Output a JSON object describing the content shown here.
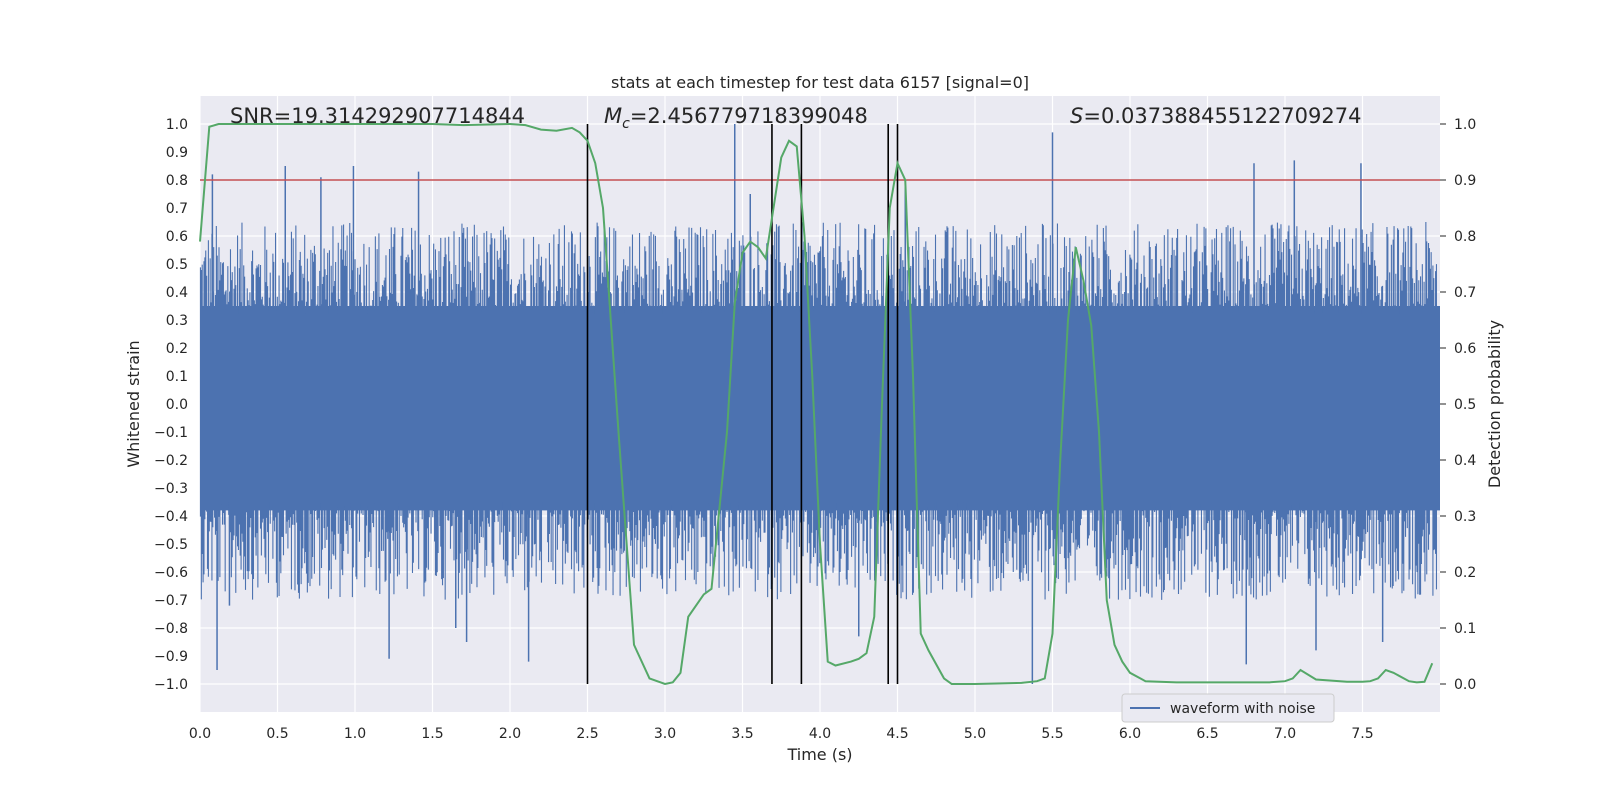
{
  "colors": {
    "background": "#eaeaf2",
    "grid": "#ffffff",
    "waveform": "#4c72b0",
    "probability": "#55a868",
    "threshold": "#c44e52",
    "event_line": "#000000"
  },
  "chart_data": {
    "type": "line",
    "title": "stats at each timestep for test data 6157 [signal=0]",
    "xlabel": "Time (s)",
    "ylabel_left": "Whitened strain",
    "ylabel_right": "Detection probability",
    "xlim": [
      0.0,
      8.0
    ],
    "ylim_left": [
      -1.1,
      1.1
    ],
    "ylim_right": [
      -0.05,
      1.05
    ],
    "x_ticks": [
      "0.0",
      "0.5",
      "1.0",
      "1.5",
      "2.0",
      "2.5",
      "3.0",
      "3.5",
      "4.0",
      "4.5",
      "5.0",
      "5.5",
      "6.0",
      "6.5",
      "7.0",
      "7.5"
    ],
    "y_ticks_left": [
      "1.0",
      "0.9",
      "0.8",
      "0.7",
      "0.6",
      "0.5",
      "0.4",
      "0.3",
      "0.2",
      "0.1",
      "0.0",
      "−0.1",
      "−0.2",
      "−0.3",
      "−0.4",
      "−0.5",
      "−0.6",
      "−0.7",
      "−0.8",
      "−0.9",
      "−1.0"
    ],
    "y_ticks_right": [
      "1.0",
      "0.9",
      "0.8",
      "0.7",
      "0.6",
      "0.5",
      "0.4",
      "0.3",
      "0.2",
      "0.1",
      "0.0"
    ],
    "annotations": {
      "snr": "SNR=19.314292907714844",
      "mc_prefix": "M",
      "mc_sub": "c",
      "mc_value": "=2.456779718399048",
      "s_prefix": "S",
      "s_value": "=0.037388455122709274"
    },
    "legend": {
      "label": "waveform with noise",
      "location": "lower-right"
    },
    "threshold_right": 0.9,
    "vertical_lines_time": [
      2.5,
      3.69,
      3.88,
      4.44,
      4.5
    ],
    "waveform_envelope": {
      "name": "waveform with noise",
      "typical_upper": 0.45,
      "typical_lower": -0.48,
      "spikes": [
        {
          "x": 0.08,
          "y": 0.82
        },
        {
          "x": 0.11,
          "y": -0.95
        },
        {
          "x": 0.19,
          "y": -0.72
        },
        {
          "x": 0.55,
          "y": 0.85
        },
        {
          "x": 0.78,
          "y": 0.81
        },
        {
          "x": 0.99,
          "y": 0.85
        },
        {
          "x": 1.22,
          "y": -0.91
        },
        {
          "x": 1.41,
          "y": 0.83
        },
        {
          "x": 1.65,
          "y": -0.8
        },
        {
          "x": 1.72,
          "y": -0.85
        },
        {
          "x": 2.12,
          "y": -0.92
        },
        {
          "x": 3.45,
          "y": 1.0
        },
        {
          "x": 3.55,
          "y": 0.75
        },
        {
          "x": 4.25,
          "y": -0.83
        },
        {
          "x": 4.55,
          "y": 0.78
        },
        {
          "x": 5.37,
          "y": -1.0
        },
        {
          "x": 5.5,
          "y": 0.97
        },
        {
          "x": 6.75,
          "y": -0.93
        },
        {
          "x": 7.06,
          "y": 0.87
        },
        {
          "x": 7.2,
          "y": -0.88
        },
        {
          "x": 7.49,
          "y": 0.86
        },
        {
          "x": 7.63,
          "y": -0.85
        },
        {
          "x": 6.8,
          "y": 0.86
        }
      ]
    },
    "probability_series": {
      "name": "detection probability",
      "x": [
        0.0,
        0.06,
        0.12,
        0.3,
        0.6,
        1.0,
        1.5,
        1.7,
        2.0,
        2.1,
        2.2,
        2.3,
        2.4,
        2.45,
        2.5,
        2.55,
        2.6,
        2.65,
        2.7,
        2.8,
        2.9,
        3.0,
        3.05,
        3.1,
        3.15,
        3.25,
        3.3,
        3.4,
        3.45,
        3.5,
        3.55,
        3.6,
        3.65,
        3.7,
        3.75,
        3.8,
        3.85,
        3.9,
        3.95,
        4.0,
        4.05,
        4.1,
        4.2,
        4.25,
        4.3,
        4.35,
        4.4,
        4.45,
        4.5,
        4.55,
        4.6,
        4.65,
        4.7,
        4.8,
        4.85,
        5.0,
        5.3,
        5.4,
        5.45,
        5.5,
        5.55,
        5.6,
        5.65,
        5.7,
        5.75,
        5.8,
        5.85,
        5.9,
        5.95,
        6.0,
        6.1,
        6.3,
        6.6,
        6.9,
        7.0,
        7.05,
        7.1,
        7.2,
        7.4,
        7.5,
        7.55,
        7.6,
        7.65,
        7.7,
        7.8,
        7.85,
        7.9,
        7.95
      ],
      "y": [
        0.79,
        0.995,
        1.0,
        1.0,
        1.0,
        1.0,
        1.0,
        0.998,
        1.0,
        0.998,
        0.99,
        0.988,
        0.993,
        0.985,
        0.97,
        0.93,
        0.85,
        0.65,
        0.45,
        0.07,
        0.01,
        0.0,
        0.003,
        0.02,
        0.12,
        0.16,
        0.17,
        0.45,
        0.68,
        0.77,
        0.79,
        0.78,
        0.76,
        0.85,
        0.94,
        0.97,
        0.96,
        0.8,
        0.55,
        0.25,
        0.04,
        0.033,
        0.04,
        0.045,
        0.055,
        0.12,
        0.5,
        0.85,
        0.93,
        0.9,
        0.55,
        0.09,
        0.06,
        0.01,
        0.0,
        0.0,
        0.002,
        0.005,
        0.01,
        0.09,
        0.4,
        0.65,
        0.78,
        0.72,
        0.64,
        0.45,
        0.15,
        0.07,
        0.04,
        0.02,
        0.005,
        0.003,
        0.003,
        0.003,
        0.005,
        0.01,
        0.025,
        0.008,
        0.004,
        0.004,
        0.005,
        0.01,
        0.025,
        0.02,
        0.005,
        0.003,
        0.004,
        0.037
      ]
    }
  }
}
